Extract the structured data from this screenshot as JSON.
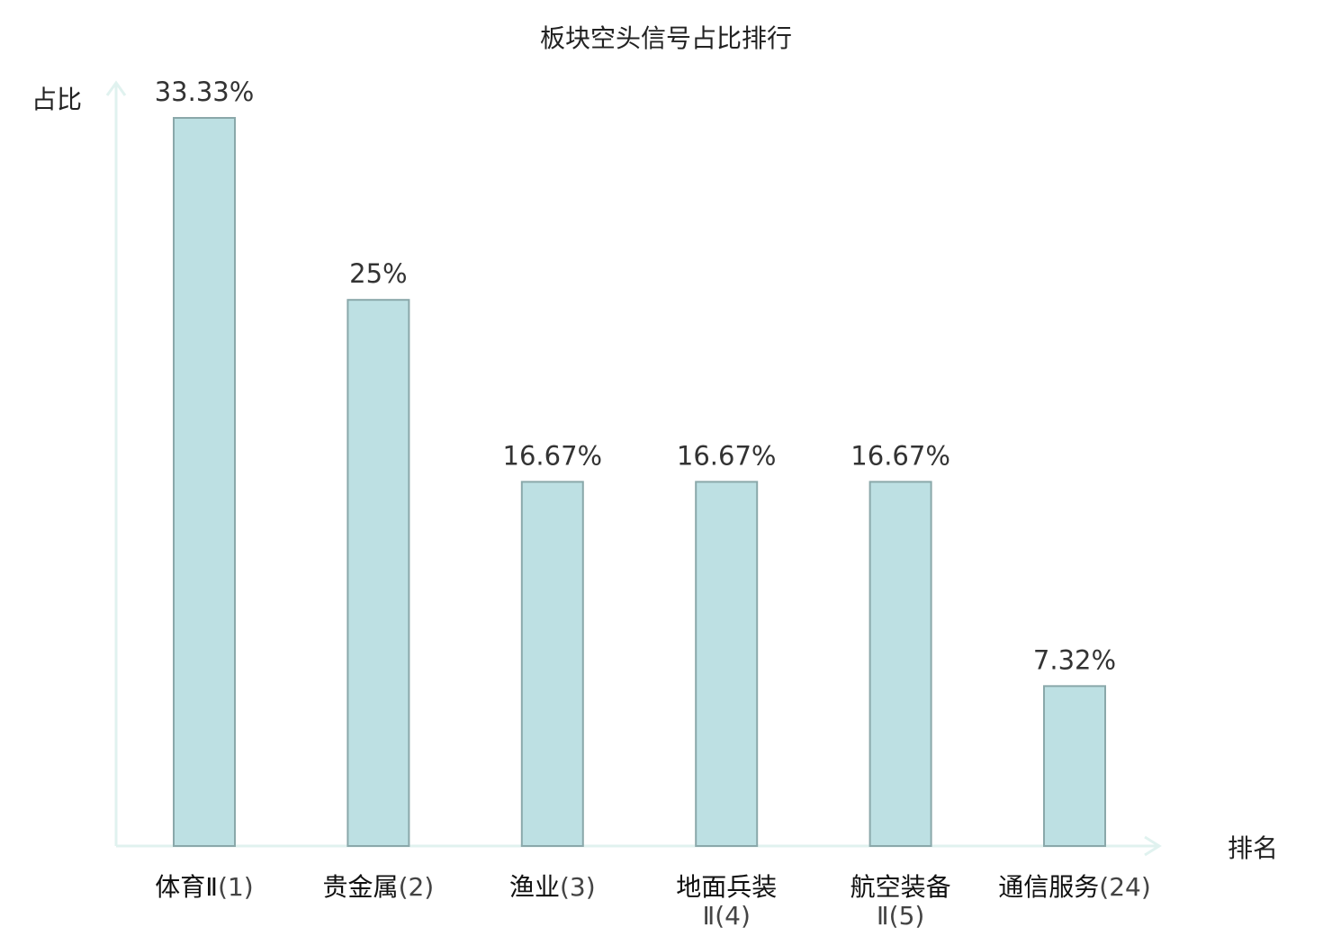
{
  "chart_data": {
    "type": "bar",
    "title": "板块空头信号占比排行",
    "ylabel": "占比",
    "xlabel": "排名",
    "ylim": [
      0,
      33.33
    ],
    "grid": false,
    "colors": {
      "bar_fill": "#bde0e3",
      "bar_stroke": "#8aa8aa",
      "axis": "#e0f2ef",
      "highlight": "#e02020"
    },
    "categories": [
      {
        "name": "体育Ⅱ",
        "rank": "(1)",
        "value": 33.33,
        "value_label": "33.33%",
        "highlight": false
      },
      {
        "name": "贵金属",
        "rank": "(2)",
        "value": 25,
        "value_label": "25%",
        "highlight": false
      },
      {
        "name": "渔业",
        "rank": "(3)",
        "value": 16.67,
        "value_label": "16.67%",
        "highlight": false
      },
      {
        "name": "地面兵装",
        "rank": "Ⅱ(4)",
        "value": 16.67,
        "value_label": "16.67%",
        "highlight": false
      },
      {
        "name": "航空装备",
        "rank": "Ⅱ(5)",
        "value": 16.67,
        "value_label": "16.67%",
        "highlight": false
      },
      {
        "name": "通信服务",
        "rank": "(24)",
        "value": 7.32,
        "value_label": "7.32%",
        "highlight": true
      }
    ]
  }
}
